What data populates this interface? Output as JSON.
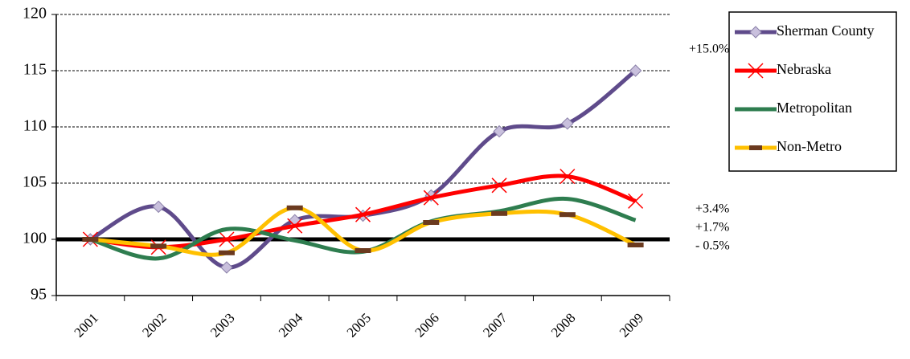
{
  "chart_data": {
    "type": "line",
    "categories": [
      "2001",
      "2002",
      "2003",
      "2004",
      "2005",
      "2006",
      "2007",
      "2008",
      "2009"
    ],
    "series": [
      {
        "name": "Sherman County",
        "color": "#5f4b8b",
        "marker": "diamond",
        "marker_color": "#c9c0dd",
        "values": [
          100,
          102.9,
          97.5,
          101.7,
          102.1,
          103.9,
          109.6,
          110.3,
          115.0
        ]
      },
      {
        "name": "Nebraska",
        "color": "#ff0000",
        "marker": "x",
        "marker_color": "#ff0000",
        "values": [
          100,
          99.3,
          100.0,
          101.2,
          102.2,
          103.7,
          104.8,
          105.6,
          103.4
        ]
      },
      {
        "name": "Metropolitan",
        "color": "#2e7d4f",
        "marker": "none",
        "marker_color": "#2e7d4f",
        "values": [
          100,
          98.3,
          100.9,
          99.9,
          98.9,
          101.6,
          102.5,
          103.6,
          101.7
        ]
      },
      {
        "name": "Non-Metro",
        "color": "#ffc000",
        "marker": "dash",
        "marker_color": "#6b3a1f",
        "values": [
          100,
          99.4,
          98.8,
          102.8,
          99.0,
          101.5,
          102.3,
          102.2,
          99.5
        ]
      }
    ],
    "ylim": [
      95,
      120
    ],
    "yticks": [
      95,
      100,
      105,
      110,
      115,
      120
    ],
    "grid": true,
    "reference_line": 100,
    "legend": "right",
    "annotations": [
      {
        "text": "+15.0%",
        "series": 0
      },
      {
        "text": "+3.4%",
        "series": 1
      },
      {
        "text": "+1.7%",
        "series": 2
      },
      {
        "text": "- 0.5%",
        "series": 3
      }
    ]
  }
}
